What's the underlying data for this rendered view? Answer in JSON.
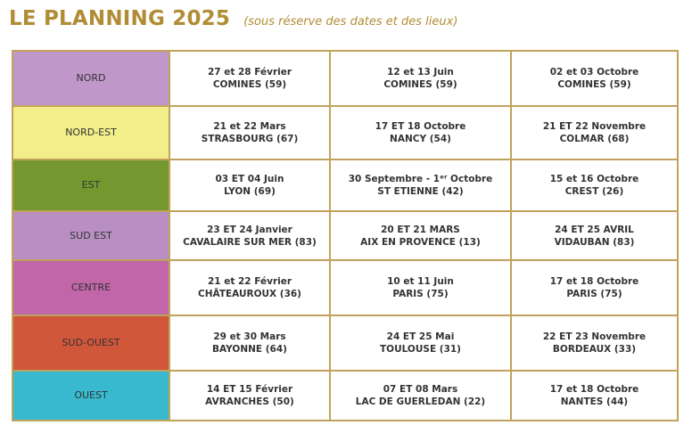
{
  "header": {
    "title": "LE PLANNING 2025",
    "subtitle": "(sous réserve des dates et des lieux)"
  },
  "rows": [
    {
      "region": "NORD",
      "color": "#bf97c9",
      "events": [
        {
          "date": "27 et 28 Février",
          "place": "COMINES (59)"
        },
        {
          "date": "12 et 13 Juin",
          "place": "COMINES (59)"
        },
        {
          "date": "02 et 03 Octobre",
          "place": "COMINES (59)"
        }
      ]
    },
    {
      "region": "NORD-EST",
      "color": "#f2ee8a",
      "events": [
        {
          "date": "21 et 22 Mars",
          "place": "STRASBOURG (67)"
        },
        {
          "date": "17 ET 18 Octobre",
          "place": "NANCY (54)"
        },
        {
          "date": "21 ET 22 Novembre",
          "place": "COLMAR (68)"
        }
      ]
    },
    {
      "region": "EST",
      "color": "#74982f",
      "events": [
        {
          "date": "03 ET 04 Juin",
          "place": "LYON (69)"
        },
        {
          "date": "30 Septembre - 1ᵉʳ Octobre",
          "place": "ST ETIENNE (42)"
        },
        {
          "date": "15 et 16 Octobre",
          "place": "CREST (26)"
        }
      ]
    },
    {
      "region": "SUD EST",
      "color": "#b98fc3",
      "events": [
        {
          "date": "23 ET 24 Janvier",
          "place": "CAVALAIRE SUR MER (83)"
        },
        {
          "date": "20 ET 21 MARS",
          "place": "AIX EN PROVENCE (13)"
        },
        {
          "date": "24 ET 25 AVRIL",
          "place": "VIDAUBAN (83)"
        }
      ]
    },
    {
      "region": "CENTRE",
      "color": "#c066a9",
      "events": [
        {
          "date": "21 et 22 Février",
          "place": "CHÂTEAUROUX (36)"
        },
        {
          "date": "10 et 11 Juin",
          "place": "PARIS (75)"
        },
        {
          "date": "17 et 18 Octobre",
          "place": "PARIS (75)"
        }
      ]
    },
    {
      "region": "SUD-OUEST",
      "color": "#d1573b",
      "events": [
        {
          "date": "29 et 30 Mars",
          "place": "BAYONNE (64)"
        },
        {
          "date": "24 ET 25 Mai",
          "place": "TOULOUSE (31)"
        },
        {
          "date": "22 ET 23 Novembre",
          "place": "BORDEAUX (33)"
        }
      ]
    },
    {
      "region": "OUEST",
      "color": "#39b9d0",
      "events": [
        {
          "date": "14 ET 15 Février",
          "place": "AVRANCHES (50)"
        },
        {
          "date": "07 ET 08 Mars",
          "place": "LAC DE GUERLEDAN (22)"
        },
        {
          "date": "17 et 18 Octobre",
          "place": "NANTES (44)"
        }
      ]
    }
  ]
}
